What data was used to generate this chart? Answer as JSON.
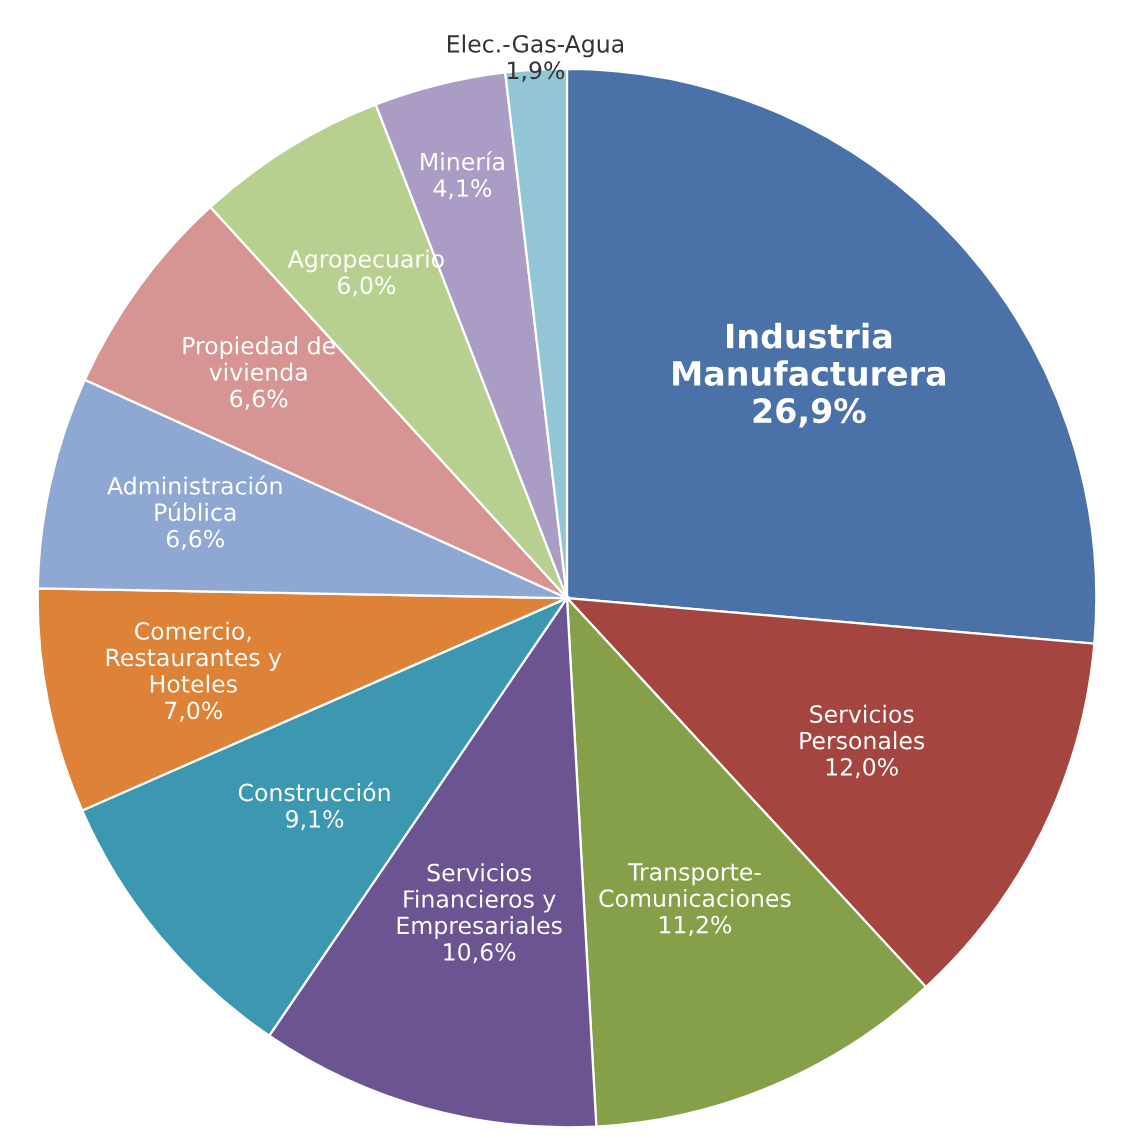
{
  "chart_data": {
    "type": "pie",
    "categories": [
      "Industria\nManufacturera",
      "Servicios\nPersonales",
      "Transporte-\nComunicaciones",
      "Servicios\nFinancieros y\nEmpresariales",
      "Construcción",
      "Comercio,\nRestaurantes y\nHoteles",
      "Administración\nPública",
      "Propiedad de\nvivienda",
      "Agropecuario",
      "Minería",
      "Elec.-Gas-Agua"
    ],
    "values": [
      26.9,
      12.0,
      11.2,
      10.6,
      9.1,
      7.0,
      6.6,
      6.6,
      6.0,
      4.1,
      1.9
    ],
    "value_labels": [
      "26,9%",
      "12,0%",
      "11,2%",
      "10,6%",
      "9,1%",
      "7,0%",
      "6,6%",
      "6,6%",
      "6,0%",
      "4,1%",
      "1,9%"
    ],
    "colors": [
      "#4a72a8",
      "#a5453f",
      "#86a04a",
      "#6c5391",
      "#3c98b0",
      "#dd8236",
      "#8ea7d3",
      "#d69592",
      "#b8d08f",
      "#ab9cc5",
      "#92c5d6"
    ],
    "legend": false
  }
}
